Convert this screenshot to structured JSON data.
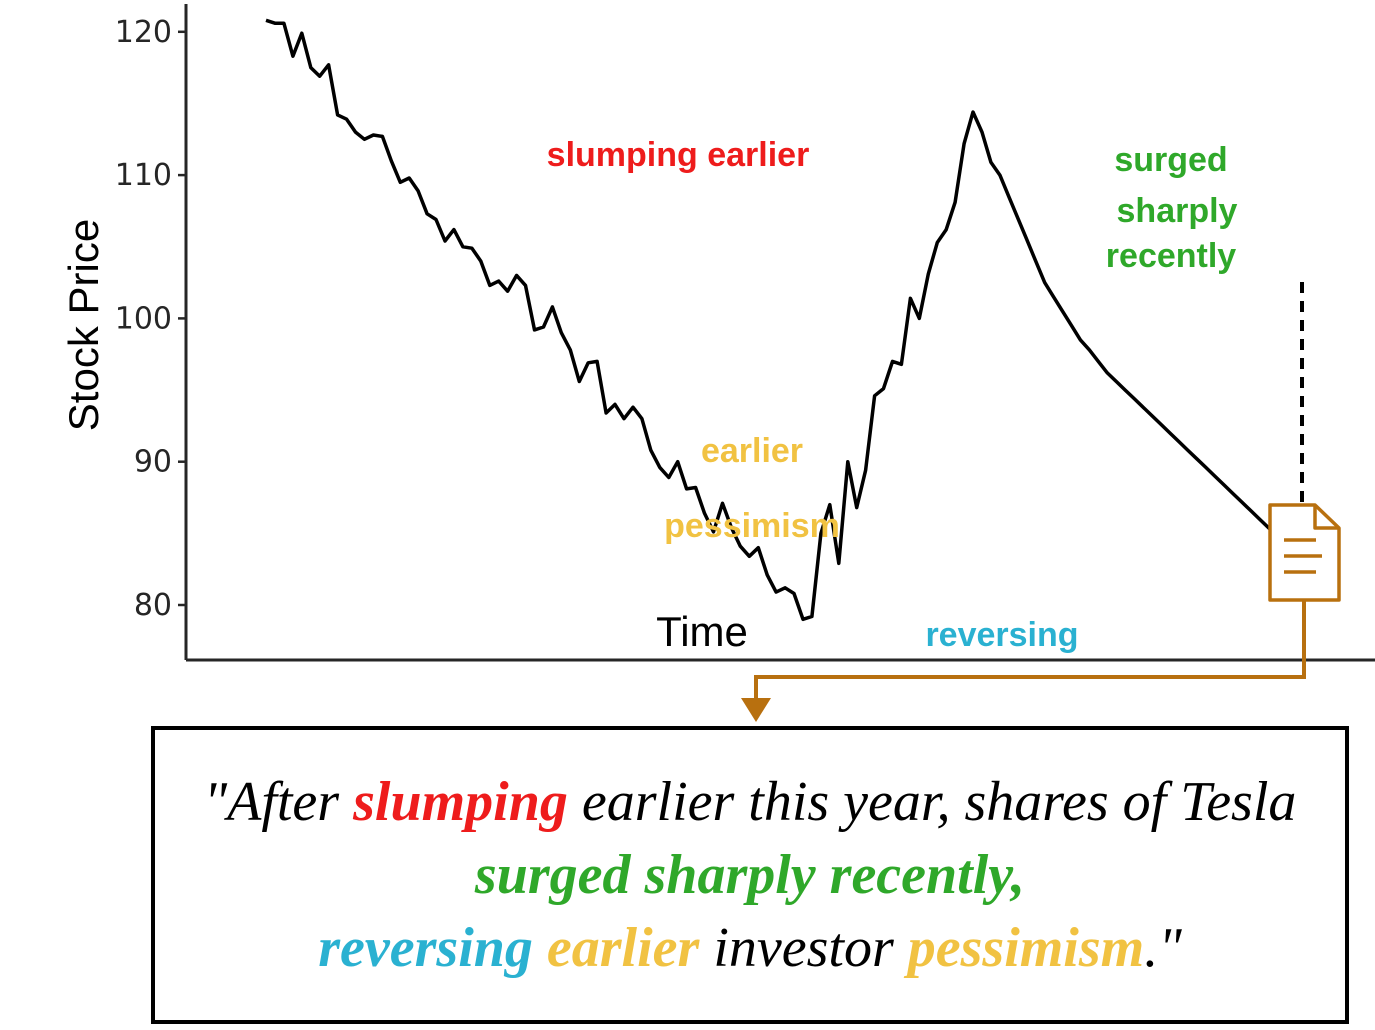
{
  "colors": {
    "red": "#ee1c1c",
    "green": "#2fa82a",
    "blue": "#2ab1d1",
    "yellow": "#f1c242",
    "brown": "#b8700f",
    "line": "#000000"
  },
  "chart_data": {
    "type": "line",
    "ylabel": "Stock Price",
    "xlabel": "Time",
    "yticks": [
      80,
      90,
      100,
      110,
      120
    ],
    "ylim": [
      76.2,
      122
    ],
    "xlim": [
      0,
      125
    ],
    "grid": false,
    "series": [
      {
        "x": [
          0,
          1,
          2,
          3,
          4,
          5,
          6,
          7,
          8,
          9,
          10,
          11,
          12,
          13,
          14,
          15,
          16,
          17,
          18,
          19,
          20,
          21,
          22,
          23,
          24,
          25,
          26,
          27,
          28,
          29,
          30,
          31,
          32,
          33,
          34,
          35,
          36,
          37,
          38,
          39,
          40,
          41,
          42,
          43,
          44,
          45,
          46,
          47,
          48,
          49,
          50,
          51,
          52,
          53,
          54,
          55,
          56,
          57,
          58,
          59,
          60,
          61,
          62,
          63,
          64,
          65,
          66,
          67,
          68,
          69,
          70,
          71,
          72,
          73,
          74,
          75,
          76,
          77,
          78,
          79,
          80,
          81,
          82,
          83,
          84,
          85,
          86,
          87,
          88,
          89,
          90,
          91,
          92,
          93,
          94,
          95,
          96,
          97,
          98,
          99,
          100,
          101,
          102,
          103,
          104,
          105,
          106,
          107,
          108,
          109,
          110,
          111,
          112,
          113,
          114,
          115,
          116,
          117
        ],
        "values": [
          120.8,
          120.6,
          120.6,
          118.3,
          119.9,
          117.5,
          116.9,
          117.7,
          114.2,
          113.9,
          113.0,
          112.5,
          112.8,
          112.7,
          111.0,
          109.5,
          109.8,
          108.9,
          107.3,
          106.9,
          105.4,
          106.2,
          105.0,
          104.9,
          104.0,
          102.3,
          102.6,
          101.9,
          103.0,
          102.3,
          99.2,
          99.4,
          100.8,
          99.0,
          97.8,
          95.6,
          96.9,
          97.0,
          93.4,
          94.0,
          93.0,
          93.8,
          93.0,
          90.8,
          89.6,
          88.9,
          90.0,
          88.1,
          88.2,
          86.4,
          85.1,
          87.1,
          85.4,
          84.1,
          83.4,
          84.0,
          82.1,
          80.9,
          81.2,
          80.8,
          79.0,
          79.2,
          85.0,
          87.0,
          82.9,
          90.0,
          86.8,
          89.4,
          94.6,
          95.1,
          97.0,
          96.8,
          101.4,
          100.0,
          103.1,
          105.3,
          106.2,
          108.1,
          112.2,
          114.4,
          113.0,
          110.9,
          110.0,
          108.5,
          107.0,
          105.5,
          104.0,
          102.5,
          101.5,
          100.5,
          99.5,
          98.5,
          97.8,
          97.0,
          96.2,
          95.6,
          95.0,
          94.4,
          93.8,
          93.2,
          92.6,
          92.0,
          91.4,
          90.8,
          90.2,
          89.6,
          89.0,
          88.4,
          87.8,
          87.2,
          86.6,
          86.0,
          85.4,
          84.8,
          84.2,
          83.6,
          83.0,
          82.4
        ]
      }
    ],
    "annotations": [
      {
        "text": "slumping earlier",
        "color": "red"
      },
      {
        "text": "surged",
        "color": "green"
      },
      {
        "text": "sharply",
        "color": "green"
      },
      {
        "text": "recently",
        "color": "green"
      },
      {
        "text": "earlier",
        "color": "yellow"
      },
      {
        "text": "pessimism",
        "color": "yellow"
      },
      {
        "text": "reversing",
        "color": "blue"
      }
    ]
  },
  "quote": {
    "line1_pre": "\"After ",
    "line1_kw": "slumping",
    "line1_post": " earlier this year, shares of Tesla",
    "line2_kw": "surged sharply recently,",
    "line3_kw1": "reversing",
    "line3_kw2": "earlier",
    "line3_mid": " investor ",
    "line3_kw3": "pessimism",
    "line3_end": ".\""
  },
  "icons": {
    "document": "document-icon",
    "connector": "arrow-connector"
  }
}
